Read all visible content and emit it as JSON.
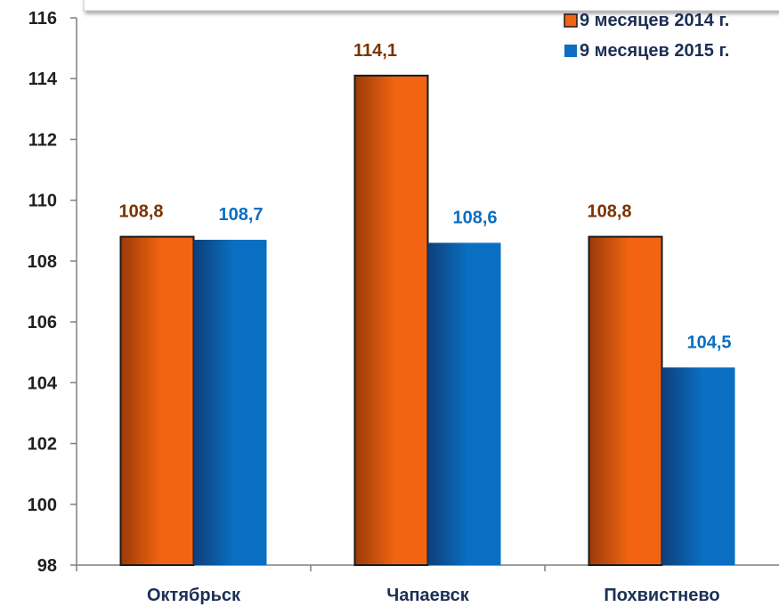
{
  "chart_data": {
    "type": "bar",
    "categories": [
      "Октябрьск",
      "Чапаевск",
      "Похвистнево"
    ],
    "series": [
      {
        "name": "9 месяцев 2014 г.",
        "values": [
          108.8,
          114.1,
          108.8
        ],
        "labels": [
          "108,8",
          "114,1",
          "108,8"
        ],
        "color": "#f26412",
        "label_color": "#7a3300"
      },
      {
        "name": "9 месяцев 2015 г.",
        "values": [
          108.7,
          108.6,
          104.5
        ],
        "labels": [
          "108,7",
          "108,6",
          "104,5"
        ],
        "color": "#0a6fc2",
        "label_color": "#0a6fc2"
      }
    ],
    "y_ticks": [
      "98",
      "100",
      "102",
      "104",
      "106",
      "108",
      "110",
      "112",
      "114",
      "116"
    ],
    "ylim": [
      98,
      116
    ],
    "grid": false,
    "legend_position": "top-right",
    "title": "",
    "xlabel": "",
    "ylabel": ""
  }
}
